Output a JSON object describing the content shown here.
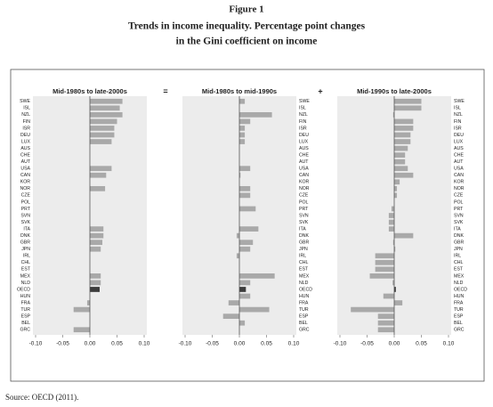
{
  "header": {
    "figure_label": "Figure 1",
    "title_lines": [
      "Trends in income inequality. Percentage point changes",
      "in the Gini coefficient on income"
    ]
  },
  "operators": [
    "=",
    "+"
  ],
  "source": "Source: OECD (2011).",
  "chart_data": [
    {
      "type": "hbar",
      "title": "Mid-1980s to late-2000s",
      "label_side": "left",
      "color": "#a9a9a9",
      "highlight": "OECD",
      "highlight_color": "#3c3c3c",
      "categories": [
        "SWE",
        "ISL",
        "NZL",
        "FIN",
        "ISR",
        "DEU",
        "LUX",
        "AUS",
        "CHE",
        "AUT",
        "USA",
        "CAN",
        "KOR",
        "NOR",
        "CZE",
        "POL",
        "PRT",
        "SVN",
        "SVK",
        "ITA",
        "DNK",
        "GBR",
        "JPN",
        "IRL",
        "CHL",
        "EST",
        "MEX",
        "NLD",
        "OECD",
        "HUN",
        "FRA",
        "TUR",
        "ESP",
        "BEL",
        "GRC"
      ],
      "values": [
        0.06,
        0.055,
        0.06,
        0.05,
        0.045,
        0.045,
        0.04,
        null,
        null,
        null,
        0.04,
        0.03,
        null,
        0.028,
        null,
        null,
        null,
        null,
        null,
        0.025,
        0.025,
        0.023,
        0.02,
        null,
        null,
        null,
        0.02,
        0.02,
        0.018,
        null,
        -0.005,
        -0.03,
        null,
        null,
        -0.03
      ],
      "xlim": [
        -0.1,
        0.1
      ],
      "xticks": [
        {
          "value": -0.1,
          "label": "-0.10"
        },
        {
          "value": -0.05,
          "label": "-0.05"
        },
        {
          "value": 0,
          "label": "0.00"
        },
        {
          "value": 0.05,
          "label": "0.05"
        },
        {
          "value": 0.1,
          "label": "0.10"
        }
      ]
    },
    {
      "type": "hbar",
      "title": "Mid-1980s to mid-1990s",
      "label_side": "right",
      "color": "#a9a9a9",
      "highlight": "OECD",
      "highlight_color": "#3c3c3c",
      "categories": [
        "SWE",
        "ISL",
        "NZL",
        "FIN",
        "ISR",
        "DEU",
        "LUX",
        "AUS",
        "CHE",
        "AUT",
        "USA",
        "CAN",
        "KOR",
        "NOR",
        "CZE",
        "POL",
        "PRT",
        "SVN",
        "SVK",
        "ITA",
        "DNK",
        "GBR",
        "JPN",
        "IRL",
        "CHL",
        "EST",
        "MEX",
        "NLD",
        "OECD",
        "HUN",
        "FRA",
        "TUR",
        "ESP",
        "BEL",
        "GRC"
      ],
      "values": [
        0.01,
        null,
        0.06,
        0.02,
        0.01,
        0.01,
        0.01,
        null,
        null,
        null,
        0.02,
        0.002,
        null,
        0.02,
        0.02,
        null,
        0.03,
        null,
        null,
        0.035,
        -0.005,
        0.025,
        0.02,
        -0.005,
        null,
        null,
        0.065,
        0.02,
        0.012,
        0.02,
        -0.02,
        0.055,
        -0.03,
        0.01,
        null
      ],
      "xlim": [
        -0.1,
        0.1
      ],
      "xticks": [
        {
          "value": -0.1,
          "label": "-0.10"
        },
        {
          "value": -0.05,
          "label": "-0.05"
        },
        {
          "value": 0,
          "label": "0.00"
        },
        {
          "value": 0.05,
          "label": "0.05"
        },
        {
          "value": 0.1,
          "label": "0.10"
        }
      ]
    },
    {
      "type": "hbar",
      "title": "Mid-1990s to late-2000s",
      "label_side": "right",
      "color": "#a9a9a9",
      "highlight": "OECD",
      "highlight_color": "#3c3c3c",
      "categories": [
        "SWE",
        "ISL",
        "NZL",
        "FIN",
        "ISR",
        "DEU",
        "LUX",
        "AUS",
        "CHE",
        "AUT",
        "USA",
        "CAN",
        "KOR",
        "NOR",
        "CZE",
        "POL",
        "PRT",
        "SVN",
        "SVK",
        "ITA",
        "DNK",
        "GBR",
        "JPN",
        "IRL",
        "CHL",
        "EST",
        "MEX",
        "NLD",
        "OECD",
        "HUN",
        "FRA",
        "TUR",
        "ESP",
        "BEL",
        "GRC"
      ],
      "values": [
        0.05,
        0.05,
        -0.002,
        0.035,
        0.035,
        0.03,
        0.03,
        0.025,
        0.02,
        0.02,
        0.025,
        0.035,
        0.01,
        0.005,
        0.005,
        null,
        -0.005,
        -0.01,
        -0.01,
        -0.01,
        0.035,
        -0.002,
        0.002,
        -0.035,
        -0.035,
        -0.035,
        -0.045,
        -0.003,
        0.003,
        -0.02,
        0.015,
        -0.08,
        -0.03,
        -0.03,
        -0.03
      ],
      "xlim": [
        -0.1,
        0.1
      ],
      "xticks": [
        {
          "value": -0.1,
          "label": "-0.10"
        },
        {
          "value": -0.05,
          "label": "-0.05"
        },
        {
          "value": 0,
          "label": "0.00"
        },
        {
          "value": 0.05,
          "label": "0.05"
        },
        {
          "value": 0.1,
          "label": "0.10"
        }
      ]
    }
  ]
}
